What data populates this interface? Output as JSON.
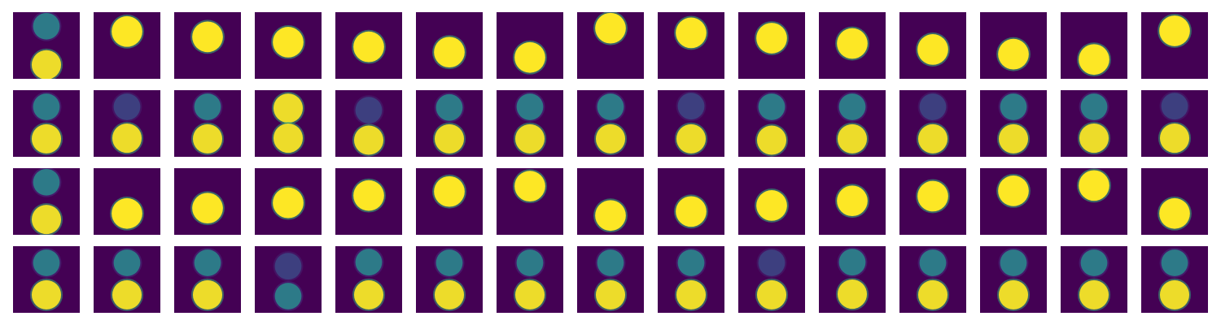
{
  "colors": {
    "background": "#440154",
    "bright_fill": "#fde725",
    "bright_edge": "#35b779",
    "dim_fill": "#2c7f8a",
    "dim_edge": "#46327e",
    "faint_fill": "#3b528b"
  },
  "icon": "viridis-heatmap-frame",
  "rows": [
    {
      "id": "row-1",
      "frames": [
        [
          {
            "r": 0.21,
            "s": "dim"
          },
          {
            "r": 0.79,
            "s": "bright"
          }
        ],
        [
          {
            "r": 0.29,
            "s": "solid"
          }
        ],
        [
          {
            "r": 0.37,
            "s": "solid"
          }
        ],
        [
          {
            "r": 0.45,
            "s": "solid"
          }
        ],
        [
          {
            "r": 0.52,
            "s": "solid"
          }
        ],
        [
          {
            "r": 0.6,
            "s": "solid"
          }
        ],
        [
          {
            "r": 0.68,
            "s": "solid"
          }
        ],
        [
          {
            "r": 0.24,
            "s": "solid"
          }
        ],
        [
          {
            "r": 0.31,
            "s": "solid"
          }
        ],
        [
          {
            "r": 0.39,
            "s": "solid"
          }
        ],
        [
          {
            "r": 0.47,
            "s": "solid"
          }
        ],
        [
          {
            "r": 0.56,
            "s": "solid"
          }
        ],
        [
          {
            "r": 0.63,
            "s": "solid"
          }
        ],
        [
          {
            "r": 0.71,
            "s": "solid"
          }
        ],
        [
          {
            "r": 0.28,
            "s": "solid"
          }
        ]
      ]
    },
    {
      "id": "row-2",
      "frames": [
        [
          {
            "r": 0.25,
            "s": "dim"
          },
          {
            "r": 0.73,
            "s": "bright"
          }
        ],
        [
          {
            "r": 0.25,
            "s": "faint"
          },
          {
            "r": 0.72,
            "s": "bright"
          }
        ],
        [
          {
            "r": 0.25,
            "s": "dim"
          },
          {
            "r": 0.73,
            "s": "bright"
          }
        ],
        [
          {
            "r": 0.27,
            "s": "bright"
          },
          {
            "r": 0.72,
            "s": "bright"
          }
        ],
        [
          {
            "r": 0.3,
            "s": "faint"
          },
          {
            "r": 0.75,
            "s": "bright"
          }
        ],
        [
          {
            "r": 0.26,
            "s": "dim"
          },
          {
            "r": 0.73,
            "s": "bright"
          }
        ],
        [
          {
            "r": 0.25,
            "s": "dim"
          },
          {
            "r": 0.73,
            "s": "bright"
          }
        ],
        [
          {
            "r": 0.25,
            "s": "dim"
          },
          {
            "r": 0.73,
            "s": "bright"
          }
        ],
        [
          {
            "r": 0.24,
            "s": "faint"
          },
          {
            "r": 0.73,
            "s": "bright"
          }
        ],
        [
          {
            "r": 0.25,
            "s": "dim"
          },
          {
            "r": 0.75,
            "s": "bright"
          }
        ],
        [
          {
            "r": 0.25,
            "s": "dim"
          },
          {
            "r": 0.73,
            "s": "bright"
          }
        ],
        [
          {
            "r": 0.25,
            "s": "faint"
          },
          {
            "r": 0.73,
            "s": "bright"
          }
        ],
        [
          {
            "r": 0.25,
            "s": "dim"
          },
          {
            "r": 0.73,
            "s": "bright"
          }
        ],
        [
          {
            "r": 0.25,
            "s": "dim"
          },
          {
            "r": 0.72,
            "s": "bright"
          }
        ],
        [
          {
            "r": 0.24,
            "s": "faint"
          },
          {
            "r": 0.72,
            "s": "bright"
          }
        ]
      ]
    },
    {
      "id": "row-3",
      "frames": [
        [
          {
            "r": 0.21,
            "s": "dim"
          },
          {
            "r": 0.77,
            "s": "bright"
          }
        ],
        [
          {
            "r": 0.68,
            "s": "solid"
          }
        ],
        [
          {
            "r": 0.6,
            "s": "solid"
          }
        ],
        [
          {
            "r": 0.52,
            "s": "solid"
          }
        ],
        [
          {
            "r": 0.41,
            "s": "solid"
          }
        ],
        [
          {
            "r": 0.35,
            "s": "solid"
          }
        ],
        [
          {
            "r": 0.27,
            "s": "solid"
          }
        ],
        [
          {
            "r": 0.71,
            "s": "solid"
          }
        ],
        [
          {
            "r": 0.65,
            "s": "solid"
          }
        ],
        [
          {
            "r": 0.56,
            "s": "solid"
          }
        ],
        [
          {
            "r": 0.49,
            "s": "solid"
          }
        ],
        [
          {
            "r": 0.42,
            "s": "solid"
          }
        ],
        [
          {
            "r": 0.34,
            "s": "solid"
          }
        ],
        [
          {
            "r": 0.26,
            "s": "solid"
          }
        ],
        [
          {
            "r": 0.68,
            "s": "solid"
          }
        ]
      ]
    },
    {
      "id": "row-4",
      "frames": [
        [
          {
            "r": 0.25,
            "s": "dim"
          },
          {
            "r": 0.73,
            "s": "bright"
          }
        ],
        [
          {
            "r": 0.25,
            "s": "dim"
          },
          {
            "r": 0.73,
            "s": "bright"
          }
        ],
        [
          {
            "r": 0.25,
            "s": "dim"
          },
          {
            "r": 0.73,
            "s": "bright"
          }
        ],
        [
          {
            "r": 0.3,
            "s": "faint"
          },
          {
            "r": 0.75,
            "s": "dim"
          }
        ],
        [
          {
            "r": 0.24,
            "s": "dim"
          },
          {
            "r": 0.73,
            "s": "bright"
          }
        ],
        [
          {
            "r": 0.25,
            "s": "dim"
          },
          {
            "r": 0.73,
            "s": "bright"
          }
        ],
        [
          {
            "r": 0.25,
            "s": "dim"
          },
          {
            "r": 0.73,
            "s": "bright"
          }
        ],
        [
          {
            "r": 0.25,
            "s": "dim"
          },
          {
            "r": 0.73,
            "s": "bright"
          }
        ],
        [
          {
            "r": 0.25,
            "s": "dim"
          },
          {
            "r": 0.73,
            "s": "bright"
          }
        ],
        [
          {
            "r": 0.25,
            "s": "faint"
          },
          {
            "r": 0.73,
            "s": "bright"
          }
        ],
        [
          {
            "r": 0.24,
            "s": "dim"
          },
          {
            "r": 0.72,
            "s": "bright"
          }
        ],
        [
          {
            "r": 0.25,
            "s": "dim"
          },
          {
            "r": 0.73,
            "s": "bright"
          }
        ],
        [
          {
            "r": 0.25,
            "s": "dim"
          },
          {
            "r": 0.73,
            "s": "bright"
          }
        ],
        [
          {
            "r": 0.25,
            "s": "dim"
          },
          {
            "r": 0.73,
            "s": "bright"
          }
        ],
        [
          {
            "r": 0.25,
            "s": "dim"
          },
          {
            "r": 0.73,
            "s": "bright"
          }
        ]
      ]
    }
  ]
}
